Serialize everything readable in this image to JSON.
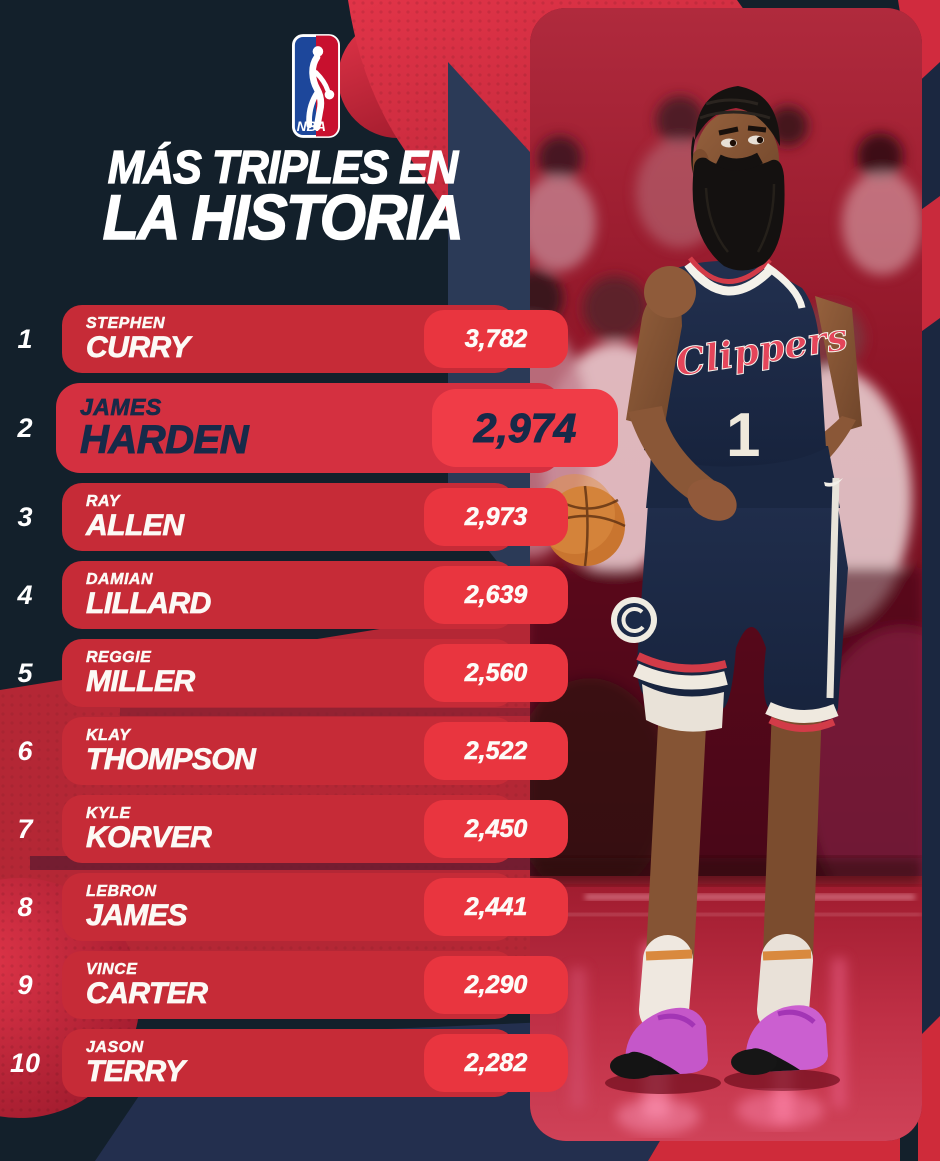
{
  "poster": {
    "title_line1": "MÁS TRIPLES EN",
    "title_line2": "LA HISTORIA",
    "logo_text": "NBA"
  },
  "colors": {
    "background": "#13202b",
    "row_red": "#c62b37",
    "pill_red": "#e9353f",
    "highlight_row_red": "#d43040",
    "highlight_pill_red": "#f03c47",
    "highlight_text_navy": "#172a49",
    "logo_blue": "#1d479b",
    "logo_red": "#c8102e"
  },
  "ranking": [
    {
      "rank": "1",
      "first": "STEPHEN",
      "last": "CURRY",
      "value": "3,782",
      "highlight": false
    },
    {
      "rank": "2",
      "first": "JAMES",
      "last": "HARDEN",
      "value": "2,974",
      "highlight": true
    },
    {
      "rank": "3",
      "first": "RAY",
      "last": "ALLEN",
      "value": "2,973",
      "highlight": false
    },
    {
      "rank": "4",
      "first": "DAMIAN",
      "last": "LILLARD",
      "value": "2,639",
      "highlight": false
    },
    {
      "rank": "5",
      "first": "REGGIE",
      "last": "MILLER",
      "value": "2,560",
      "highlight": false
    },
    {
      "rank": "6",
      "first": "KLAY",
      "last": "THOMPSON",
      "value": "2,522",
      "highlight": false
    },
    {
      "rank": "7",
      "first": "KYLE",
      "last": "KORVER",
      "value": "2,450",
      "highlight": false
    },
    {
      "rank": "8",
      "first": "LEBRON",
      "last": "JAMES",
      "value": "2,441",
      "highlight": false
    },
    {
      "rank": "9",
      "first": "VINCE",
      "last": "CARTER",
      "value": "2,290",
      "highlight": false
    },
    {
      "rank": "10",
      "first": "JASON",
      "last": "TERRY",
      "value": "2,282",
      "highlight": false
    }
  ],
  "photo": {
    "subject": "James Harden",
    "jersey_script": "Clippers",
    "jersey_number": "1"
  },
  "chart_data": {
    "type": "table",
    "title": "MÁS TRIPLES EN LA HISTORIA",
    "columns": [
      "rank",
      "player",
      "three_pointers_made"
    ],
    "rows": [
      [
        1,
        "Stephen Curry",
        3782
      ],
      [
        2,
        "James Harden",
        2974
      ],
      [
        3,
        "Ray Allen",
        2973
      ],
      [
        4,
        "Damian Lillard",
        2639
      ],
      [
        5,
        "Reggie Miller",
        2560
      ],
      [
        6,
        "Klay Thompson",
        2522
      ],
      [
        7,
        "Kyle Korver",
        2450
      ],
      [
        8,
        "LeBron James",
        2441
      ],
      [
        9,
        "Vince Carter",
        2290
      ],
      [
        10,
        "Jason Terry",
        2282
      ]
    ],
    "legend_position": "none",
    "grid": false
  }
}
